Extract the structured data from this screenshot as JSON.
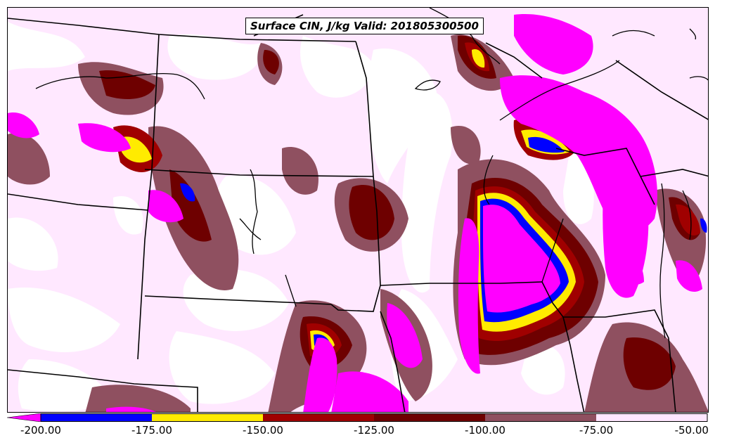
{
  "title": "Surface CIN, J/kg Valid: 201805300500",
  "colorbar": {
    "ticks": [
      "-200.00",
      "-175.00",
      "-150.00",
      "-125.00",
      "-100.00",
      "-75.00",
      "-50.00"
    ],
    "bins": [
      {
        "from": -200,
        "to": -175,
        "color": "#0000ff"
      },
      {
        "from": -175,
        "to": -150,
        "color": "#ffeb00"
      },
      {
        "from": -150,
        "to": -125,
        "color": "#a00000"
      },
      {
        "from": -125,
        "to": -100,
        "color": "#6e0000"
      },
      {
        "from": -100,
        "to": -75,
        "color": "#8f5060"
      },
      {
        "from": -75,
        "to": -50,
        "color": "#ffe8ff"
      }
    ],
    "under_color": "#ff00ff"
  },
  "colors": {
    "magenta": "#ff00ff",
    "blue": "#0000ff",
    "yellow": "#ffeb00",
    "red": "#a00000",
    "darkred": "#6e0000",
    "mauve": "#8f5060",
    "pale_pink": "#ffe8ff",
    "border": "#000000"
  }
}
